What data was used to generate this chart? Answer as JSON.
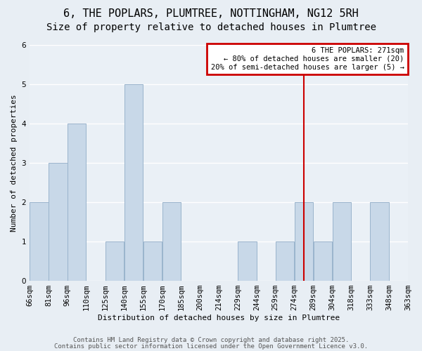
{
  "title": "6, THE POPLARS, PLUMTREE, NOTTINGHAM, NG12 5RH",
  "subtitle": "Size of property relative to detached houses in Plumtree",
  "xlabel": "Distribution of detached houses by size in Plumtree",
  "ylabel": "Number of detached properties",
  "bin_labels": [
    "66sqm",
    "81sqm",
    "96sqm",
    "110sqm",
    "125sqm",
    "140sqm",
    "155sqm",
    "170sqm",
    "185sqm",
    "200sqm",
    "214sqm",
    "229sqm",
    "244sqm",
    "259sqm",
    "274sqm",
    "289sqm",
    "304sqm",
    "318sqm",
    "333sqm",
    "348sqm",
    "363sqm"
  ],
  "bar_heights": [
    2,
    3,
    4,
    0,
    1,
    5,
    1,
    2,
    0,
    0,
    0,
    1,
    0,
    1,
    2,
    1,
    2,
    0,
    2,
    0
  ],
  "bar_color": "#c8d8e8",
  "bar_edge_color": "#9ab4cc",
  "bar_width": 0.98,
  "red_line_x": 14.0,
  "red_line_color": "#cc0000",
  "legend_title": "6 THE POPLARS: 271sqm",
  "legend_line1": "← 80% of detached houses are smaller (20)",
  "legend_line2": "20% of semi-detached houses are larger (5) →",
  "legend_box_color": "#cc0000",
  "footer_line1": "Contains HM Land Registry data © Crown copyright and database right 2025.",
  "footer_line2": "Contains public sector information licensed under the Open Government Licence v3.0.",
  "ylim": [
    0,
    6
  ],
  "yticks": [
    0,
    1,
    2,
    3,
    4,
    5,
    6
  ],
  "bg_color": "#e8eef4",
  "plot_bg_color": "#eaf0f6",
  "grid_color": "#ffffff",
  "title_fontsize": 11,
  "subtitle_fontsize": 10,
  "axis_label_fontsize": 8,
  "tick_fontsize": 7.5,
  "legend_fontsize": 7.5,
  "footer_fontsize": 6.5
}
